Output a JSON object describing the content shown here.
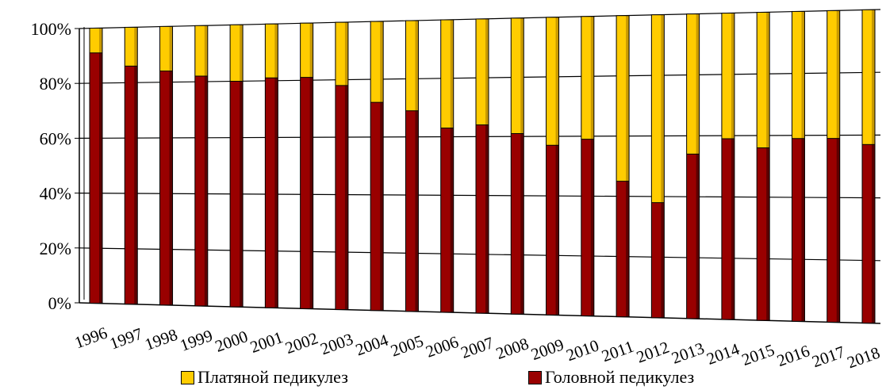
{
  "chart_data": {
    "type": "bar",
    "stacked": true,
    "percent": true,
    "categories": [
      "1996",
      "1997",
      "1998",
      "1999",
      "2000",
      "2001",
      "2002",
      "2003",
      "2004",
      "2005",
      "2006",
      "2007",
      "2008",
      "2009",
      "2010",
      "2011",
      "2012",
      "2013",
      "2014",
      "2015",
      "2016",
      "2017",
      "2018"
    ],
    "series": [
      {
        "name": "Головной педикулез",
        "color": "#990000",
        "values": [
          91,
          86,
          84,
          82,
          80,
          81,
          81,
          78,
          72,
          69,
          63,
          64,
          61,
          57,
          59,
          45,
          38,
          54,
          59,
          56,
          59,
          59,
          57
        ]
      },
      {
        "name": "Платяной педикулез",
        "color": "#ffcc00",
        "values": [
          9,
          14,
          16,
          18,
          20,
          19,
          19,
          22,
          28,
          31,
          37,
          36,
          39,
          43,
          41,
          55,
          62,
          46,
          41,
          44,
          41,
          41,
          43
        ]
      }
    ],
    "yticks": [
      "0%",
      "20%",
      "40%",
      "60%",
      "80%",
      "100%"
    ],
    "ylim": [
      0,
      100
    ],
    "grid": true,
    "legend_position": "bottom"
  },
  "legend": [
    {
      "label": "Платяной педикулез",
      "color": "#ffcc00"
    },
    {
      "label": "Головной педикулез",
      "color": "#990000"
    }
  ]
}
